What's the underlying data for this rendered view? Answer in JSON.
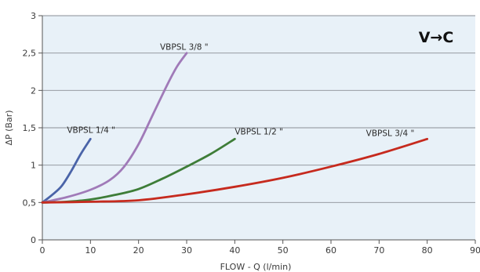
{
  "chart_data": {
    "type": "line",
    "xlabel": "FLOW - Q (l/min)",
    "ylabel": "ΔP (Bar)",
    "xlim": [
      0,
      90
    ],
    "ylim": [
      0,
      3
    ],
    "x_ticks": [
      0,
      10,
      20,
      30,
      40,
      50,
      60,
      70,
      80,
      90
    ],
    "y_ticks": [
      0,
      0.5,
      1,
      1.5,
      2,
      2.5,
      3
    ],
    "x_tick_labels": [
      "0",
      "10",
      "20",
      "30",
      "40",
      "50",
      "60",
      "70",
      "80",
      "90"
    ],
    "y_tick_labels": [
      "0",
      "0,5",
      "1",
      "1,5",
      "2",
      "2,5",
      "3"
    ],
    "grid": "horizontal",
    "background_color": "#e8f1f8",
    "annotation": "V→C",
    "series": [
      {
        "name": "VBPSL 1/4 \"",
        "color": "#4a64a8",
        "x": [
          0,
          2,
          4,
          6,
          8,
          10
        ],
        "y": [
          0.5,
          0.6,
          0.72,
          0.92,
          1.15,
          1.35
        ]
      },
      {
        "name": "VBPSL 3/8 \"",
        "color": "#a07ab8",
        "x": [
          0,
          5,
          10,
          14,
          17,
          20,
          23,
          26,
          28,
          30
        ],
        "y": [
          0.5,
          0.57,
          0.67,
          0.8,
          0.98,
          1.28,
          1.68,
          2.08,
          2.32,
          2.5
        ]
      },
      {
        "name": "VBPSL 1/2 \"",
        "color": "#3e7d38",
        "x": [
          0,
          5,
          10,
          15,
          20,
          25,
          30,
          35,
          40
        ],
        "y": [
          0.5,
          0.51,
          0.54,
          0.6,
          0.68,
          0.82,
          0.98,
          1.15,
          1.35
        ]
      },
      {
        "name": "VBPSL 3/4 \"",
        "color": "#c62a1e",
        "x": [
          0,
          10,
          20,
          30,
          40,
          50,
          60,
          70,
          80
        ],
        "y": [
          0.5,
          0.51,
          0.53,
          0.61,
          0.71,
          0.83,
          0.98,
          1.15,
          1.35
        ]
      }
    ]
  }
}
